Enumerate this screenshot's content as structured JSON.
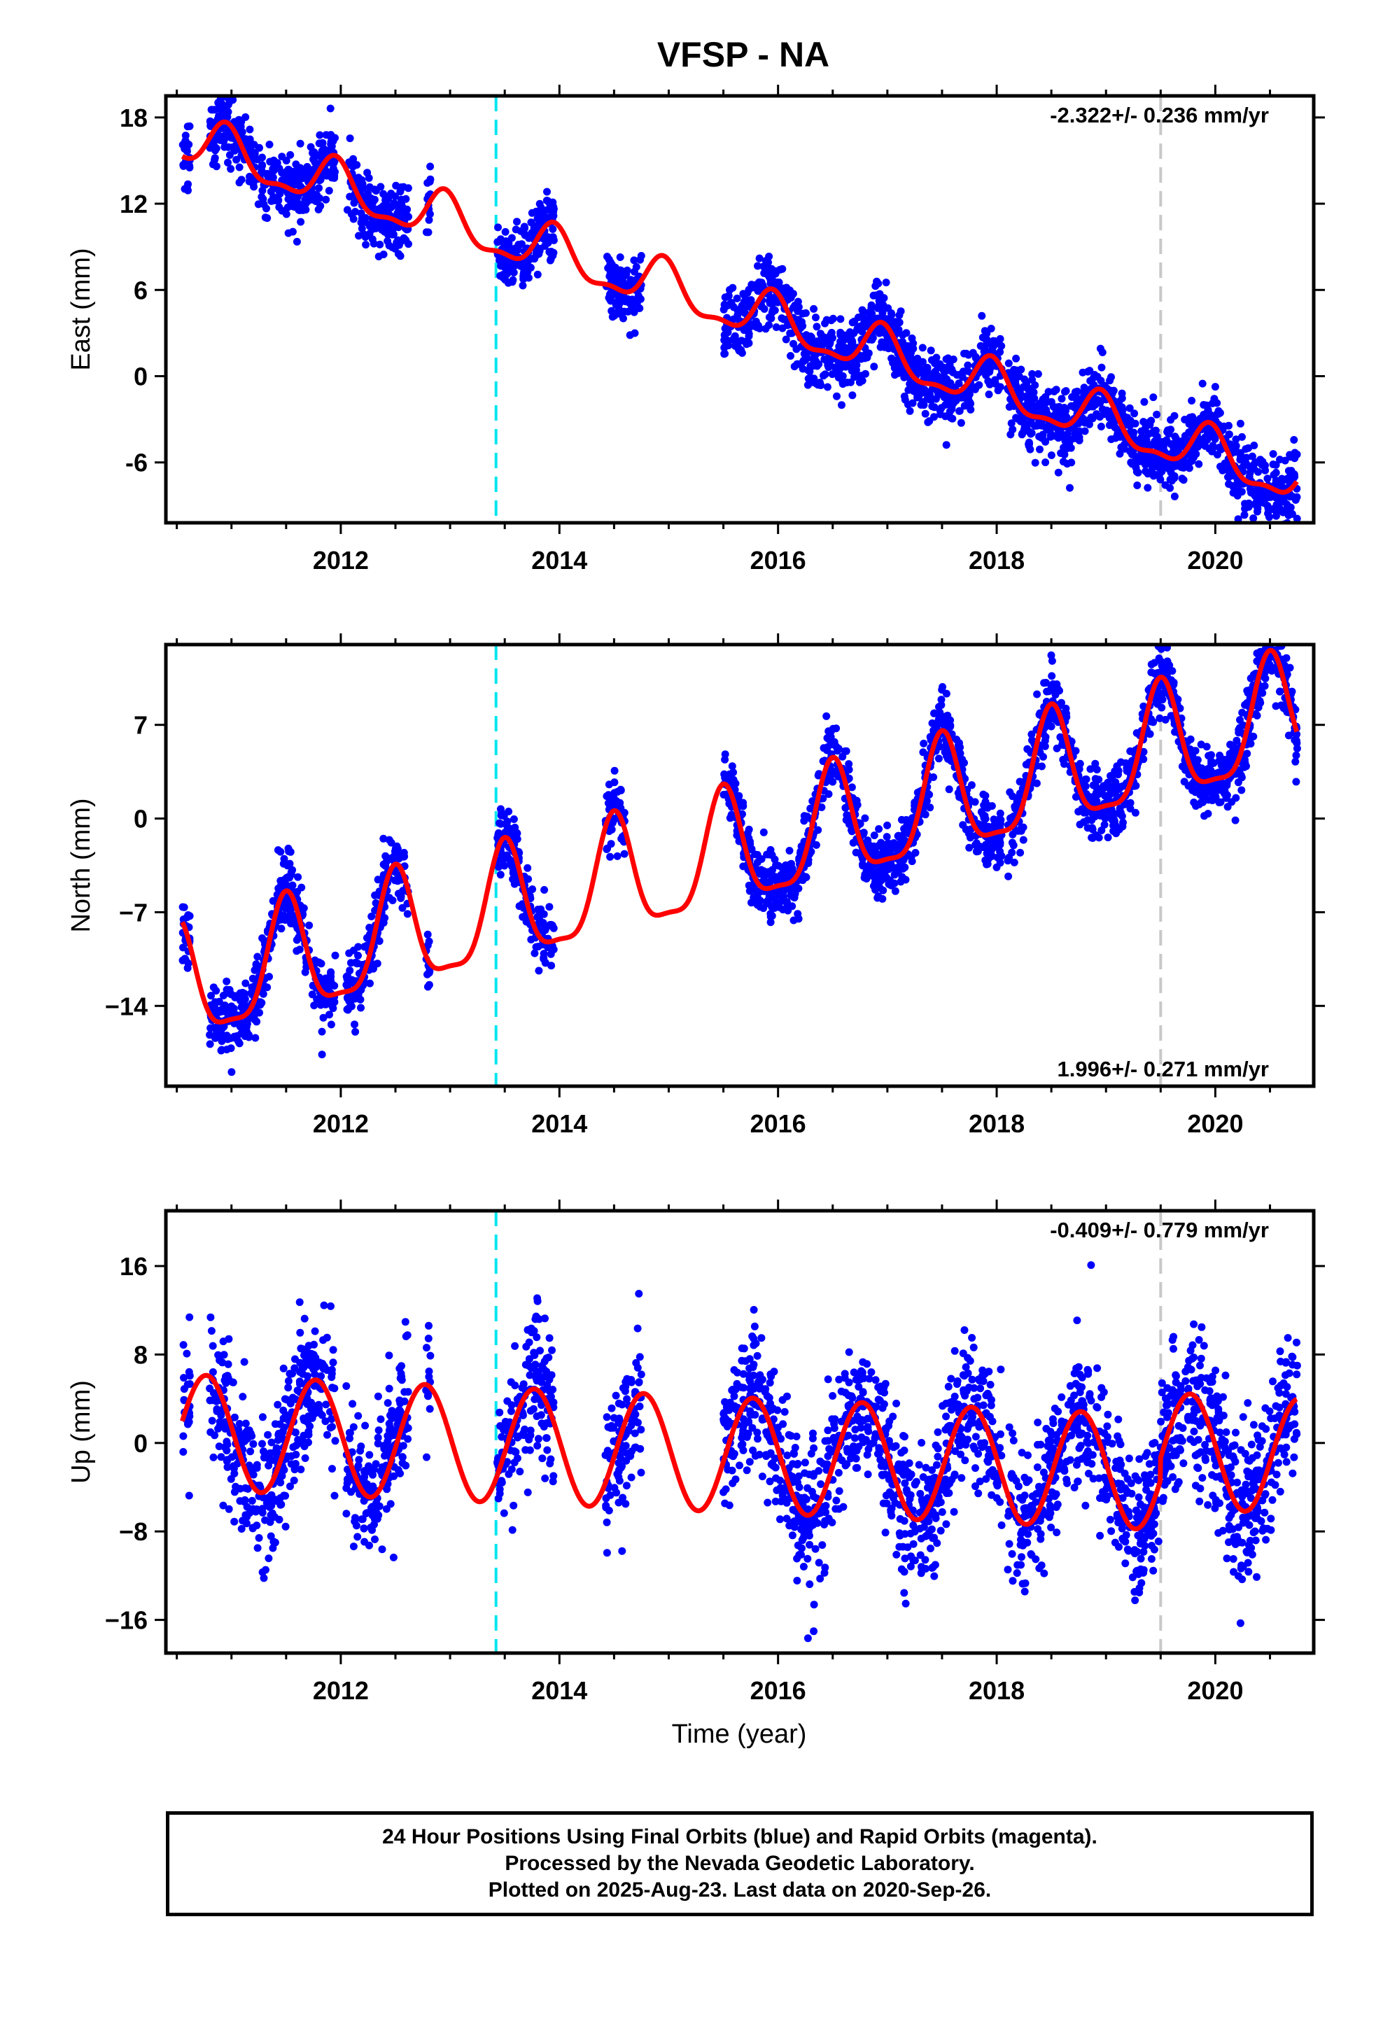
{
  "title": "VFSP - NA",
  "xlabel": "Time (year)",
  "footer": {
    "line1": "24 Hour Positions Using Final Orbits (blue) and Rapid Orbits (magenta).",
    "line2": "Processed by the Nevada Geodetic Laboratory.",
    "line3": "Plotted on 2025-Aug-23. Last data on 2020-Sep-26."
  },
  "colors": {
    "points": "#0000ff",
    "model": "#ff0000",
    "cyan_line": "#00e5ee",
    "gray_line": "#c8c8c8"
  },
  "chart_data": [
    {
      "type": "scatter",
      "name": "east",
      "ylabel": "East (mm)",
      "rate": "-2.322+/- 0.236 mm/yr",
      "rate_position": "top-right",
      "xlim": [
        2010.4,
        2020.9
      ],
      "ylim": [
        -10.2,
        19.5
      ],
      "yticks": [
        -6,
        0,
        6,
        12,
        18
      ],
      "xticks": [
        2012,
        2014,
        2016,
        2018,
        2020
      ],
      "ytick_labels": [
        "-6",
        "0",
        "6",
        "12",
        "18"
      ],
      "xtick_labels": [
        "2012",
        "2014",
        "2016",
        "2018",
        "2020"
      ],
      "vertical_lines": [
        {
          "x": 2013.42,
          "style": "dashed",
          "color": "cyan"
        },
        {
          "x": 2019.5,
          "style": "dashed",
          "color": "gray"
        }
      ],
      "model": {
        "offset": 16.4,
        "ref_year": 2010.55,
        "trend": -2.322,
        "annual_amp": 1.6,
        "annual_phase": 2010.95,
        "semi_amp": 0.6,
        "steps": []
      },
      "segments": [
        [
          2010.55,
          2010.62
        ],
        [
          2010.8,
          2011.95
        ],
        [
          2012.05,
          2012.62
        ],
        [
          2012.78,
          2012.82
        ],
        [
          2013.43,
          2013.95
        ],
        [
          2014.42,
          2014.75
        ],
        [
          2015.5,
          2018.05
        ],
        [
          2018.1,
          2020.75
        ]
      ],
      "noise": 1.2
    },
    {
      "type": "scatter",
      "name": "north",
      "ylabel": "North (mm)",
      "rate": "1.996+/- 0.271 mm/yr",
      "rate_position": "bottom-right",
      "xlim": [
        2010.4,
        2020.9
      ],
      "ylim": [
        -20,
        13
      ],
      "yticks": [
        -14,
        -7,
        0,
        7
      ],
      "xticks": [
        2012,
        2014,
        2016,
        2018,
        2020
      ],
      "ytick_labels": [
        "−14",
        "−7",
        "0",
        "7"
      ],
      "xtick_labels": [
        "2012",
        "2014",
        "2016",
        "2018",
        "2020"
      ],
      "vertical_lines": [
        {
          "x": 2013.42,
          "style": "dashed",
          "color": "cyan"
        },
        {
          "x": 2019.5,
          "style": "dashed",
          "color": "gray"
        }
      ],
      "model": {
        "offset": -12.8,
        "ref_year": 2010.55,
        "trend": 1.996,
        "annual_amp": 4.3,
        "annual_phase": 2011.5,
        "semi_amp": 1.2,
        "steps": []
      },
      "segments": [
        [
          2010.55,
          2010.62
        ],
        [
          2010.8,
          2011.95
        ],
        [
          2012.05,
          2012.62
        ],
        [
          2012.78,
          2012.82
        ],
        [
          2013.43,
          2013.95
        ],
        [
          2014.42,
          2014.6
        ],
        [
          2015.5,
          2018.05
        ],
        [
          2018.1,
          2020.75
        ]
      ],
      "noise": 1.3
    },
    {
      "type": "scatter",
      "name": "up",
      "ylabel": "Up (mm)",
      "rate": "-0.409+/- 0.779 mm/yr",
      "rate_position": "top-right",
      "xlim": [
        2010.4,
        2020.9
      ],
      "ylim": [
        -19,
        21
      ],
      "yticks": [
        -16,
        -8,
        0,
        8,
        16
      ],
      "xticks": [
        2012,
        2014,
        2016,
        2018,
        2020
      ],
      "ytick_labels": [
        "−16",
        "−8",
        "0",
        "8",
        "16"
      ],
      "xtick_labels": [
        "2012",
        "2014",
        "2016",
        "2018",
        "2020"
      ],
      "vertical_lines": [
        {
          "x": 2013.42,
          "style": "dashed",
          "color": "cyan"
        },
        {
          "x": 2019.5,
          "style": "dashed",
          "color": "gray"
        }
      ],
      "model": {
        "offset": 1.0,
        "ref_year": 2010.55,
        "trend": -0.409,
        "annual_amp": 5.2,
        "annual_phase": 2010.77,
        "semi_amp": 0.0,
        "steps": [
          {
            "x": 2019.5,
            "size": 2.0
          }
        ]
      },
      "segments": [
        [
          2010.55,
          2010.62
        ],
        [
          2010.8,
          2011.95
        ],
        [
          2012.05,
          2012.62
        ],
        [
          2012.78,
          2012.82
        ],
        [
          2013.43,
          2013.95
        ],
        [
          2014.42,
          2014.75
        ],
        [
          2015.5,
          2018.05
        ],
        [
          2018.1,
          2020.75
        ]
      ],
      "noise": 3.2
    }
  ]
}
